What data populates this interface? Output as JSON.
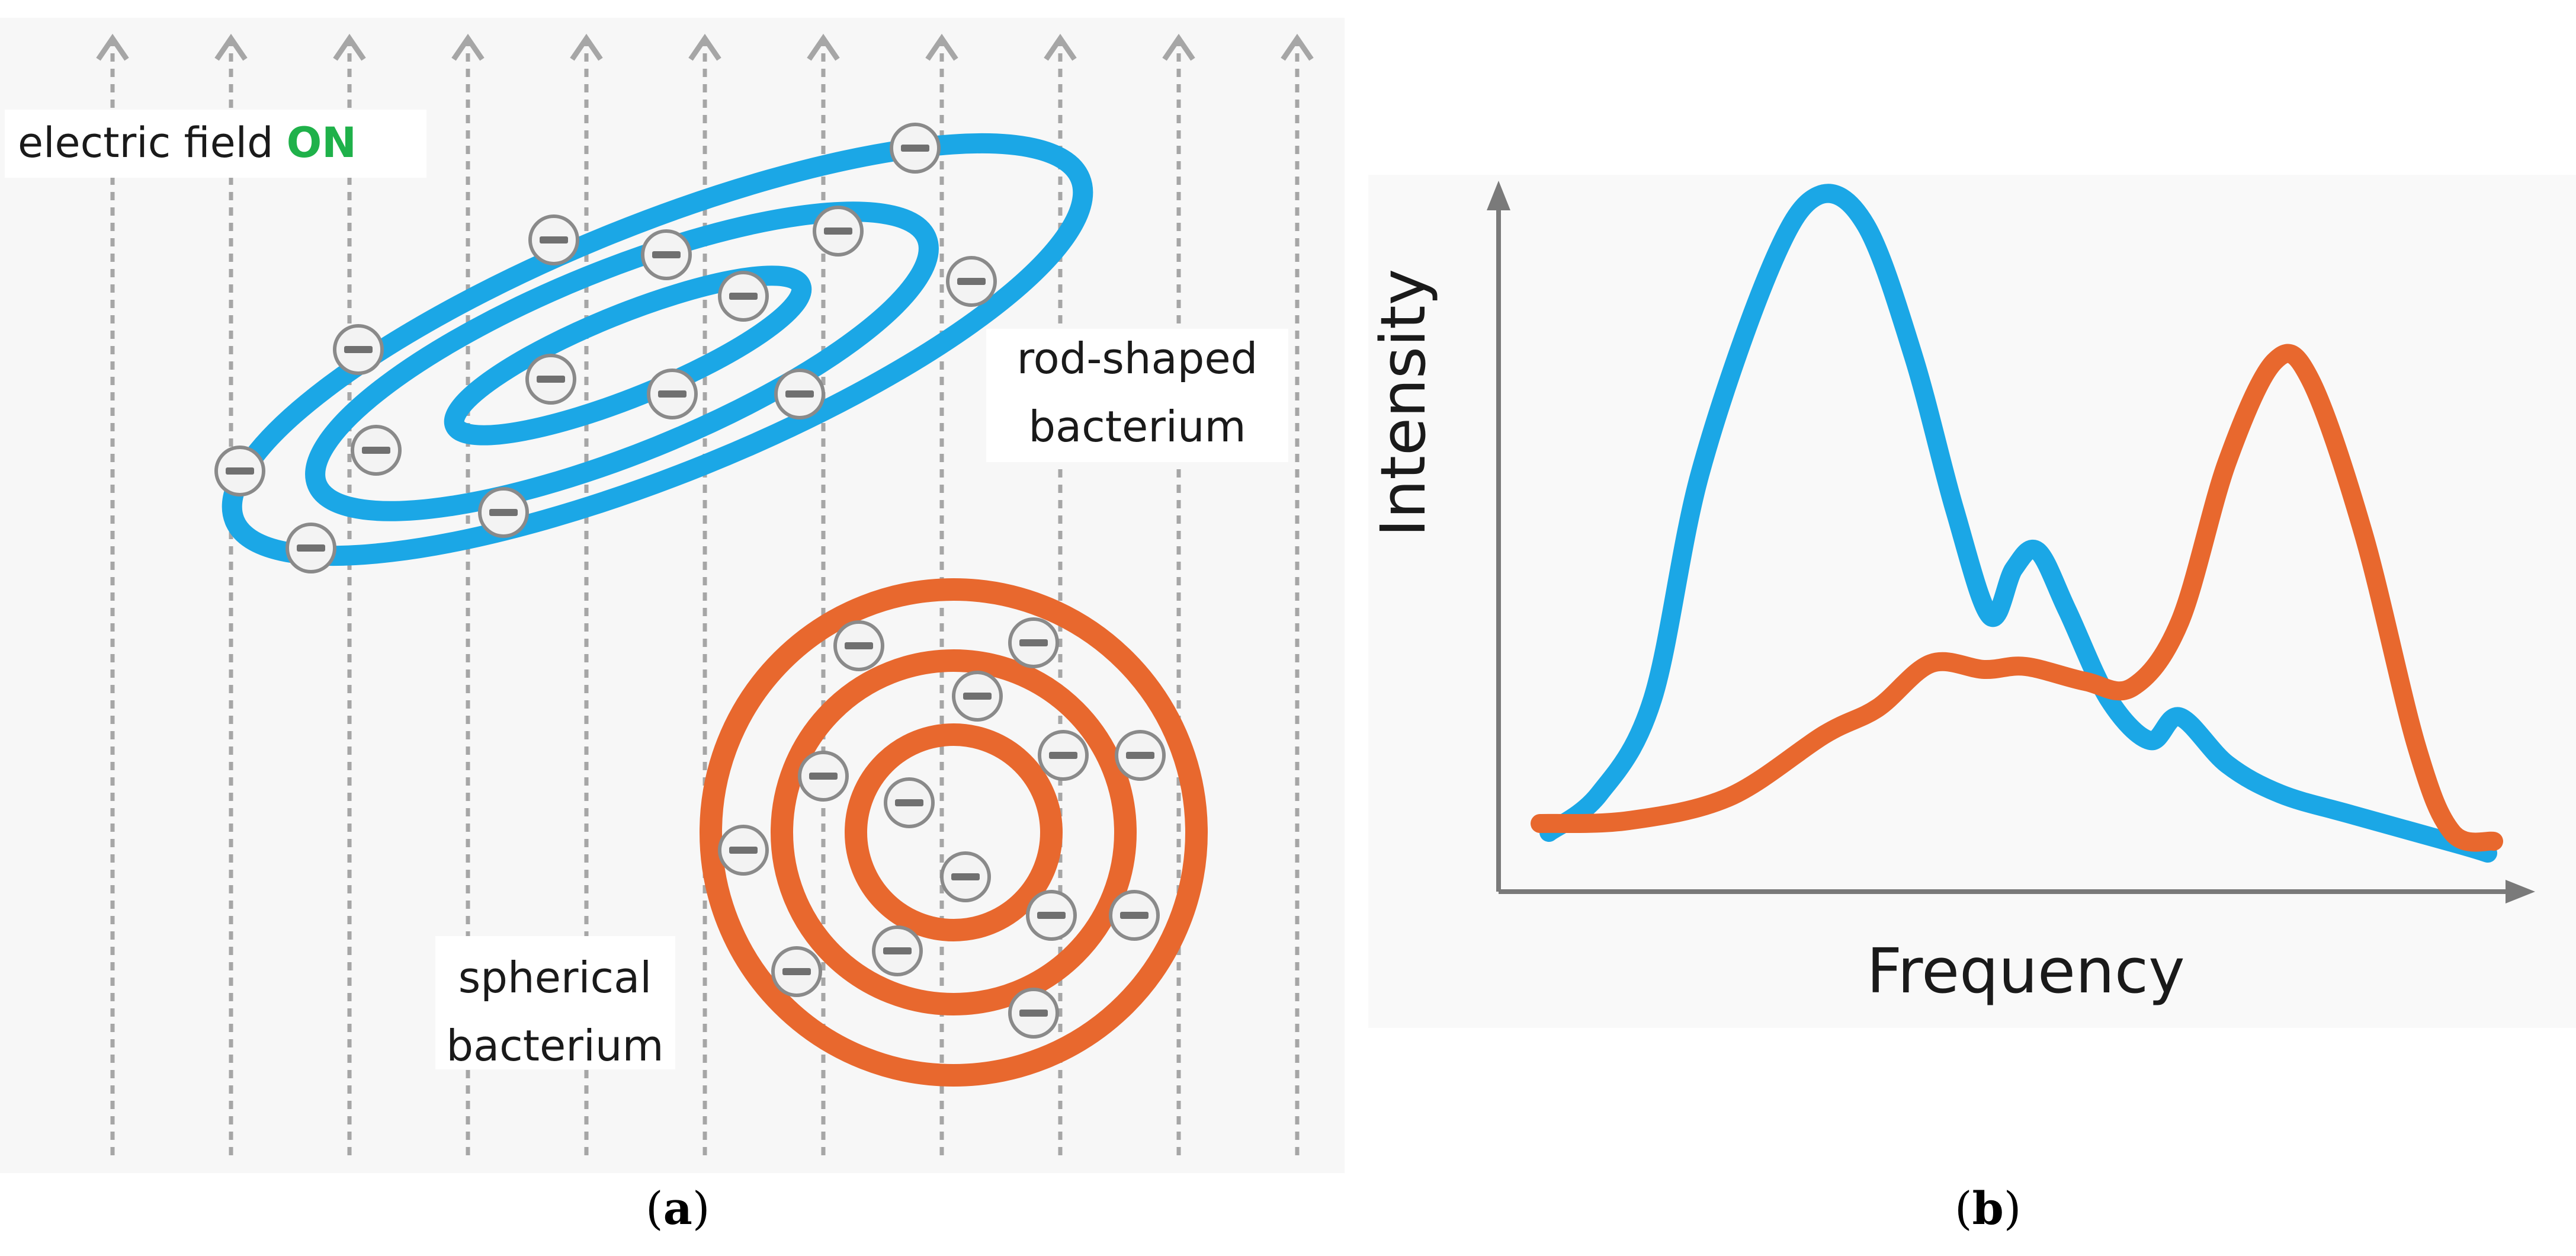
{
  "panel_a": {
    "label_open": "(",
    "label_letter": "a",
    "label_close": ")",
    "field_text": "electric field ",
    "field_state": "ON",
    "rod_label_line1": "rod-shaped",
    "rod_label_line2": "bacterium",
    "sphere_label_line1": "spherical",
    "sphere_label_line2": "bacterium",
    "charge_symbol": "−"
  },
  "panel_b": {
    "label_open": "(",
    "label_letter": "b",
    "label_close": ")",
    "ylabel": "Intensity",
    "xlabel": "Frequency"
  },
  "colors": {
    "rod": "#1ba7e6",
    "sphere": "#e8682e",
    "field_on": "#1fb14a",
    "field_lines": "#a6a6a6",
    "charge_fill": "#f3f3f3",
    "charge_stroke": "#8a8a8a",
    "axes": "#7a7a7a"
  },
  "icons": {
    "charge": "negative-charge-icon",
    "field_arrow": "arrow-up-icon"
  }
}
